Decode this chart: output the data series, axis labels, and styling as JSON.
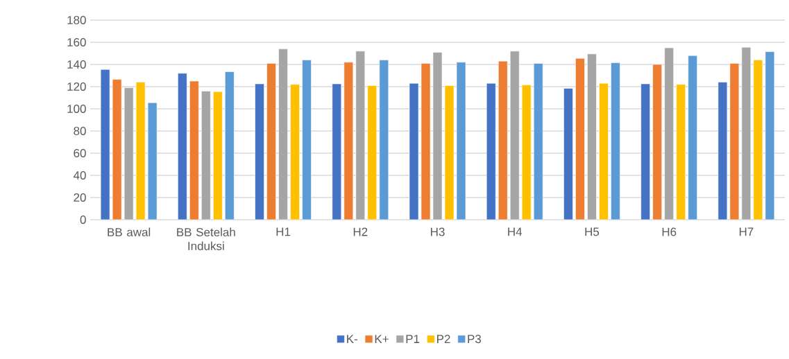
{
  "chart_data": {
    "type": "bar",
    "categories": [
      "BB awal",
      "BB Setelah Induksi",
      "H1",
      "H2",
      "H3",
      "H4",
      "H5",
      "H6",
      "H7"
    ],
    "series": [
      {
        "name": "K-",
        "color": "#4472c4",
        "values": [
          135.5,
          132,
          122.5,
          122.5,
          123,
          123,
          118.5,
          122.5,
          124
        ]
      },
      {
        "name": "K+",
        "color": "#ed7d31",
        "values": [
          126.5,
          125,
          141,
          142,
          141,
          143,
          145.5,
          140,
          141
        ]
      },
      {
        "name": "P1",
        "color": "#a5a5a5",
        "values": [
          119,
          116,
          154,
          152,
          151,
          152,
          149.5,
          155,
          155.5
        ]
      },
      {
        "name": "P2",
        "color": "#ffc000",
        "values": [
          124,
          115.5,
          122,
          121,
          121,
          121.5,
          123,
          122,
          144
        ]
      },
      {
        "name": "P3",
        "color": "#5b9bd5",
        "values": [
          105.5,
          133.5,
          144,
          144,
          142,
          141,
          141.5,
          148,
          151.5
        ]
      }
    ],
    "ylim": [
      0,
      180
    ],
    "yticks": [
      0,
      20,
      40,
      60,
      80,
      100,
      120,
      140,
      160,
      180
    ],
    "grid": "y",
    "legend": "bottom"
  }
}
